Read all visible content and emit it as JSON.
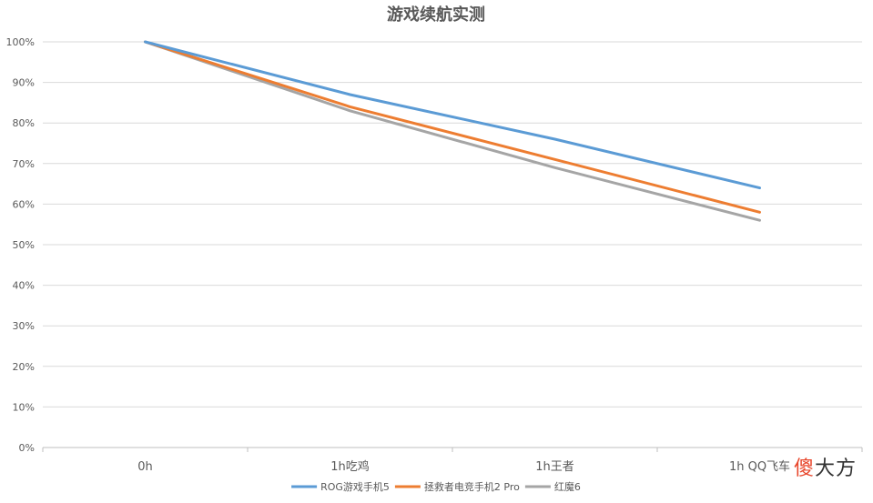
{
  "chart_data": {
    "type": "line",
    "title": "游戏续航实测",
    "categories": [
      "0h",
      "1h吃鸡",
      "1h王者",
      "1h QQ飞车"
    ],
    "y_ticks": [
      "0%",
      "10%",
      "20%",
      "30%",
      "40%",
      "50%",
      "60%",
      "70%",
      "80%",
      "90%",
      "100%"
    ],
    "ylim": [
      0,
      100
    ],
    "grid": true,
    "legend_position": "bottom",
    "series": [
      {
        "name": "ROG游戏手机5",
        "values": [
          100,
          87,
          76,
          64
        ],
        "color": "#5b9bd5"
      },
      {
        "name": "拯救者电竞手机2 Pro",
        "values": [
          100,
          84,
          71,
          58
        ],
        "color": "#ed7d31"
      },
      {
        "name": "红魔6",
        "values": [
          100,
          83,
          69,
          56
        ],
        "color": "#a5a5a5"
      }
    ]
  },
  "watermark": {
    "part1": "傻",
    "part2": "大方"
  }
}
